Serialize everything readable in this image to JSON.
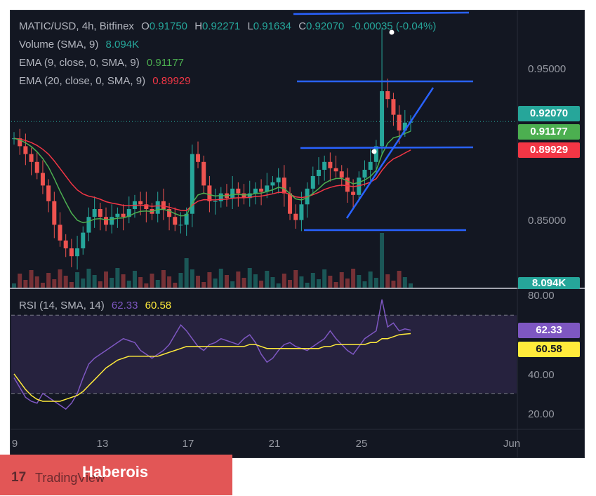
{
  "legend": {
    "symbol": "MATIC/USD, 4h, Bitfinex",
    "o_label": "O",
    "o_value": "0.91750",
    "h_label": "H",
    "h_value": "0.92271",
    "l_label": "L",
    "l_value": "0.91634",
    "c_label": "C",
    "c_value": "0.92070",
    "change": "-0.00035 (-0.04%)",
    "volume_label": "Volume (SMA, 9)",
    "volume_value": "8.094K",
    "ema9_label": "EMA (9, close, 0, SMA, 9)",
    "ema9_value": "0.91177",
    "ema20_label": "EMA (20, close, 0, SMA, 9)",
    "ema20_value": "0.89929"
  },
  "price_tags": {
    "close": "0.92070",
    "ema9": "0.91177",
    "ema20": "0.89929",
    "volume": "8.094K"
  },
  "rsi": {
    "label": "RSI (14, SMA, 14)",
    "rsi_value": "62.33",
    "sma_value": "60.58"
  },
  "colors": {
    "up": "#26a69a",
    "down": "#ef5350",
    "ema9": "#4caf50",
    "ema20": "#f23645",
    "rsi": "#7e57c2",
    "rsi_sma": "#ffeb3b",
    "trendline": "#2962ff",
    "bg": "#131722",
    "badge": "#e25656"
  },
  "branding": {
    "logo_icon": "tradingview-icon",
    "logo_text": "TradingView",
    "publisher": "Haberois"
  },
  "chart_data": [
    {
      "type": "candlestick",
      "title": "MATIC/USD, 4h, Bitfinex",
      "x_ticks": [
        "9",
        "13",
        "17",
        "21",
        "25",
        "Jun"
      ],
      "y_ticks": [
        "0.95000",
        "0.85000"
      ],
      "ylim": [
        0.815,
        0.99
      ],
      "last_close": 0.9207,
      "ema9_last": 0.91177,
      "ema20_last": 0.89929,
      "close_path": [
        0.91,
        0.905,
        0.9,
        0.895,
        0.888,
        0.88,
        0.87,
        0.855,
        0.845,
        0.84,
        0.835,
        0.84,
        0.85,
        0.86,
        0.865,
        0.86,
        0.855,
        0.86,
        0.862,
        0.86,
        0.865,
        0.87,
        0.868,
        0.865,
        0.862,
        0.87,
        0.865,
        0.86,
        0.855,
        0.855,
        0.862,
        0.9,
        0.895,
        0.88,
        0.87,
        0.87,
        0.875,
        0.872,
        0.878,
        0.875,
        0.872,
        0.875,
        0.878,
        0.876,
        0.88,
        0.882,
        0.885,
        0.875,
        0.862,
        0.858,
        0.868,
        0.878,
        0.886,
        0.89,
        0.895,
        0.891,
        0.889,
        0.885,
        0.876,
        0.874,
        0.885,
        0.89,
        0.895,
        0.905,
        0.94,
        0.935,
        0.925,
        0.915,
        0.92,
        0.9207
      ],
      "volume_last": "8.094K"
    },
    {
      "type": "line",
      "title": "RSI (14, SMA, 14)",
      "y_ticks": [
        "80.00",
        "40.00",
        "20.00"
      ],
      "ylim": [
        12,
        83
      ],
      "bands": [
        70,
        30
      ],
      "series": [
        {
          "name": "RSI",
          "last": 62.33,
          "values": [
            38,
            33,
            28,
            26,
            25,
            30,
            28,
            26,
            24,
            22,
            25,
            30,
            38,
            45,
            48,
            50,
            52,
            54,
            56,
            58,
            57,
            56,
            52,
            50,
            48,
            50,
            52,
            55,
            60,
            65,
            62,
            58,
            54,
            52,
            55,
            56,
            58,
            57,
            56,
            55,
            58,
            60,
            56,
            50,
            46,
            48,
            52,
            55,
            56,
            54,
            53,
            52,
            54,
            56,
            58,
            62,
            58,
            55,
            52,
            50,
            54,
            58,
            60,
            62,
            78,
            64,
            66,
            62,
            63,
            62.33
          ]
        },
        {
          "name": "RSI SMA",
          "last": 60.58,
          "values": [
            40,
            36,
            32,
            29,
            27,
            26,
            26,
            26,
            26,
            27,
            28,
            29,
            31,
            34,
            37,
            40,
            43,
            45,
            47,
            48,
            49,
            49,
            49,
            49,
            49,
            49,
            50,
            51,
            52,
            53,
            54,
            54,
            54,
            54,
            54,
            54,
            54,
            54,
            54,
            54,
            54,
            55,
            55,
            54,
            53,
            53,
            53,
            53,
            53,
            53,
            53,
            53,
            53,
            53,
            54,
            54,
            55,
            55,
            55,
            55,
            55,
            55,
            56,
            56,
            58,
            58,
            59,
            60,
            60.3,
            60.58
          ]
        }
      ]
    }
  ]
}
